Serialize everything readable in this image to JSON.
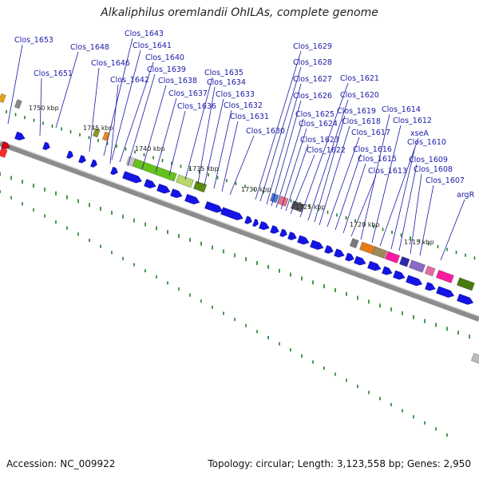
{
  "title": "Alkaliphilus oremlandii OhILAs, complete genome",
  "footer": {
    "accession": "Accession: NC_009922",
    "topology": "Topology: circular; Length: 3,123,558 bp; Genes: 2,950"
  },
  "colors": {
    "label": "#1a1aa8",
    "forward_gene": "#1414e6",
    "backbone": "#8c8c8c",
    "tick": "#1e7d1e"
  },
  "kbp_labels": [
    "1750 kbp",
    "1745 kbp",
    "1740 kbp",
    "1735 kbp",
    "1730 kbp",
    "1725 kbp",
    "1720 kbp",
    "1715 kbp"
  ],
  "gene_labels": [
    "Clos_1653",
    "Clos_1648",
    "Clos_1651",
    "Clos_1646",
    "Clos_1643",
    "Clos_1641",
    "Clos_1640",
    "Clos_1642",
    "Clos_1639",
    "Clos_1638",
    "Clos_1637",
    "Clos_1636",
    "Clos_1635",
    "Clos_1634",
    "Clos_1633",
    "Clos_1632",
    "Clos_1631",
    "Clos_1630",
    "Clos_1629",
    "Clos_1628",
    "Clos_1627",
    "Clos_1626",
    "Clos_1625",
    "Clos_1624",
    "Clos_1623",
    "Clos_1622",
    "Clos_1621",
    "Clos_1620",
    "Clos_1619",
    "Clos_1618",
    "Clos_1617",
    "Clos_1616",
    "Clos_1615",
    "Clos_1613",
    "Clos_1614",
    "Clos_1612",
    "xseA",
    "Clos_1610",
    "Clos_1609",
    "Clos_1608",
    "Clos_1607",
    "argR"
  ]
}
